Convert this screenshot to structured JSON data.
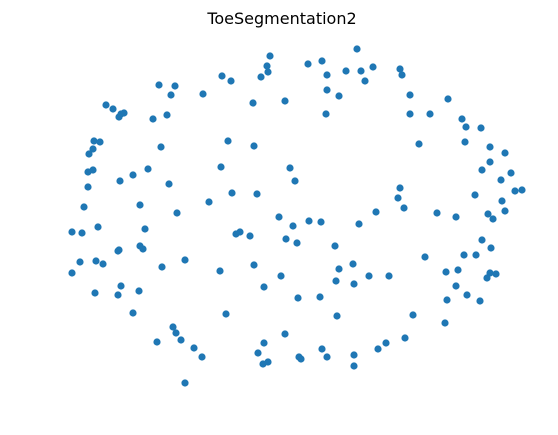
{
  "chart_data": {
    "type": "scatter",
    "title": "ToeSegmentation2",
    "xlabel": "",
    "ylabel": "",
    "grid": false,
    "axes_visible": false,
    "colors": {
      "point": "#1f77b4"
    },
    "xlim": [
      54,
      538
    ],
    "ylim": [
      404,
      30
    ],
    "series": [
      {
        "color": "#1f77b4",
        "points": [
          [
            357,
            49
          ],
          [
            270,
            56
          ],
          [
            308,
            64
          ],
          [
            322,
            61
          ],
          [
            267,
            66
          ],
          [
            268,
            72
          ],
          [
            327,
            75
          ],
          [
            346,
            71
          ],
          [
            361,
            71
          ],
          [
            373,
            67
          ],
          [
            400,
            69
          ],
          [
            402,
            75
          ],
          [
            365,
            81
          ],
          [
            222,
            76
          ],
          [
            231,
            81
          ],
          [
            261,
            77
          ],
          [
            159,
            85
          ],
          [
            175,
            86
          ],
          [
            171,
            95
          ],
          [
            203,
            94
          ],
          [
            327,
            90
          ],
          [
            339,
            96
          ],
          [
            410,
            95
          ],
          [
            253,
            103
          ],
          [
            285,
            101
          ],
          [
            106,
            105
          ],
          [
            113,
            109
          ],
          [
            121,
            114
          ],
          [
            124,
            113
          ],
          [
            119,
            117
          ],
          [
            153,
            119
          ],
          [
            167,
            115
          ],
          [
            326,
            114
          ],
          [
            410,
            114
          ],
          [
            430,
            114
          ],
          [
            448,
            99
          ],
          [
            462,
            119
          ],
          [
            466,
            127
          ],
          [
            481,
            128
          ],
          [
            94,
            141
          ],
          [
            100,
            142
          ],
          [
            93,
            149
          ],
          [
            89,
            154
          ],
          [
            161,
            147
          ],
          [
            228,
            141
          ],
          [
            254,
            146
          ],
          [
            419,
            144
          ],
          [
            465,
            142
          ],
          [
            490,
            147
          ],
          [
            505,
            153
          ],
          [
            490,
            162
          ],
          [
            93,
            170
          ],
          [
            88,
            172
          ],
          [
            221,
            167
          ],
          [
            148,
            169
          ],
          [
            133,
            175
          ],
          [
            120,
            181
          ],
          [
            169,
            184
          ],
          [
            290,
            168
          ],
          [
            295,
            181
          ],
          [
            482,
            170
          ],
          [
            511,
            173
          ],
          [
            501,
            180
          ],
          [
            88,
            187
          ],
          [
            232,
            193
          ],
          [
            257,
            194
          ],
          [
            400,
            188
          ],
          [
            475,
            195
          ],
          [
            515,
            191
          ],
          [
            522,
            190
          ],
          [
            84,
            207
          ],
          [
            140,
            205
          ],
          [
            209,
            202
          ],
          [
            398,
            198
          ],
          [
            404,
            208
          ],
          [
            177,
            213
          ],
          [
            279,
            217
          ],
          [
            437,
            213
          ],
          [
            456,
            217
          ],
          [
            488,
            214
          ],
          [
            493,
            219
          ],
          [
            505,
            211
          ],
          [
            502,
            201
          ],
          [
            72,
            232
          ],
          [
            82,
            233
          ],
          [
            98,
            227
          ],
          [
            145,
            229
          ],
          [
            236,
            234
          ],
          [
            240,
            232
          ],
          [
            250,
            236
          ],
          [
            293,
            226
          ],
          [
            309,
            221
          ],
          [
            321,
            222
          ],
          [
            359,
            224
          ],
          [
            376,
            212
          ],
          [
            286,
            239
          ],
          [
            297,
            243
          ],
          [
            140,
            246
          ],
          [
            143,
            249
          ],
          [
            118,
            251
          ],
          [
            119,
            250
          ],
          [
            335,
            246
          ],
          [
            482,
            240
          ],
          [
            491,
            248
          ],
          [
            464,
            255
          ],
          [
            476,
            255
          ],
          [
            80,
            262
          ],
          [
            96,
            261
          ],
          [
            103,
            264
          ],
          [
            162,
            267
          ],
          [
            185,
            260
          ],
          [
            220,
            271
          ],
          [
            254,
            265
          ],
          [
            281,
            276
          ],
          [
            339,
            269
          ],
          [
            353,
            264
          ],
          [
            369,
            276
          ],
          [
            389,
            276
          ],
          [
            425,
            257
          ],
          [
            458,
            270
          ],
          [
            446,
            272
          ],
          [
            490,
            273
          ],
          [
            496,
            274
          ],
          [
            487,
            278
          ],
          [
            72,
            273
          ],
          [
            121,
            286
          ],
          [
            95,
            293
          ],
          [
            118,
            295
          ],
          [
            139,
            291
          ],
          [
            264,
            287
          ],
          [
            298,
            298
          ],
          [
            320,
            297
          ],
          [
            336,
            281
          ],
          [
            354,
            284
          ],
          [
            456,
            286
          ],
          [
            467,
            295
          ],
          [
            480,
            301
          ],
          [
            447,
            300
          ],
          [
            133,
            313
          ],
          [
            226,
            314
          ],
          [
            337,
            316
          ],
          [
            413,
            315
          ],
          [
            173,
            327
          ],
          [
            176,
            333
          ],
          [
            285,
            334
          ],
          [
            445,
            323
          ],
          [
            157,
            342
          ],
          [
            181,
            340
          ],
          [
            194,
            348
          ],
          [
            264,
            343
          ],
          [
            322,
            349
          ],
          [
            378,
            349
          ],
          [
            386,
            343
          ],
          [
            405,
            338
          ],
          [
            202,
            357
          ],
          [
            258,
            353
          ],
          [
            299,
            357
          ],
          [
            301,
            359
          ],
          [
            327,
            357
          ],
          [
            354,
            355
          ],
          [
            263,
            364
          ],
          [
            268,
            362
          ],
          [
            354,
            366
          ],
          [
            185,
            383
          ]
        ]
      }
    ]
  }
}
